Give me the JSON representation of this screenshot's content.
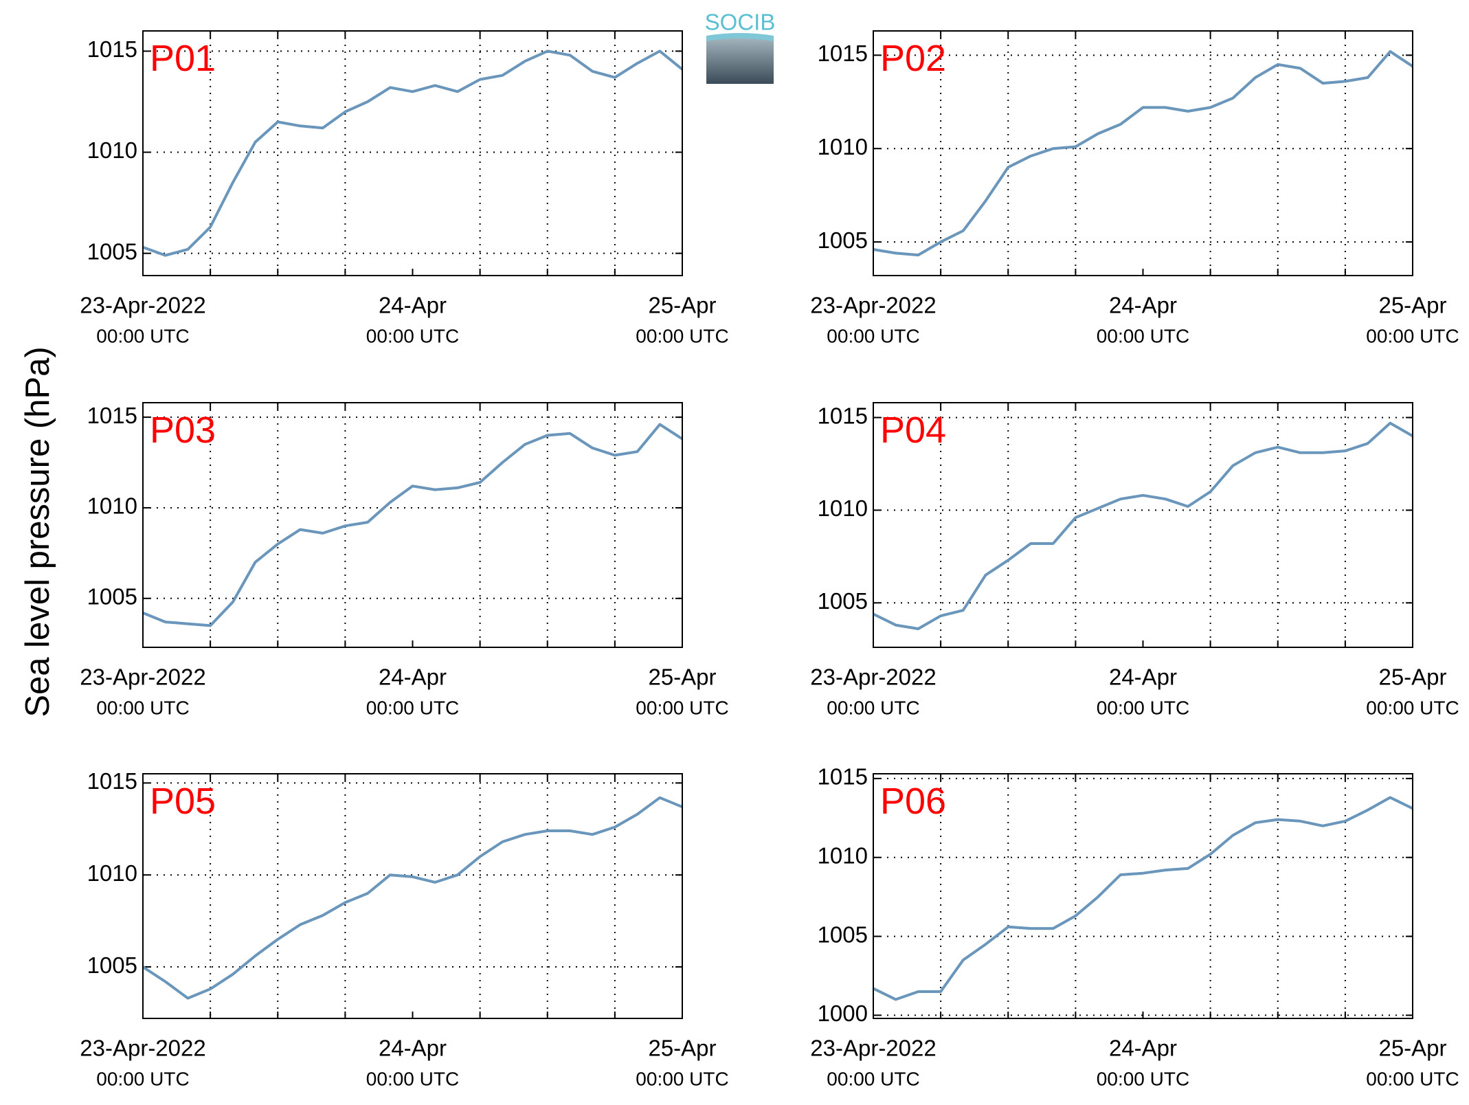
{
  "logo": "SOCIB",
  "ylabel": "Sea level pressure (hPa)",
  "chart_data": [
    {
      "type": "line",
      "title": "P01",
      "ylim": [
        1003.9,
        1016.0
      ],
      "yticks": [
        1005,
        1010,
        1015
      ],
      "xlim": [
        "2022-04-23T00:00",
        "2022-04-25T00:00"
      ],
      "xticks": [
        {
          "value": "2022-04-23T00:00",
          "label": "23-Apr-2022",
          "time_label": "00:00 UTC"
        },
        {
          "value": "2022-04-24T00:00",
          "label": "24-Apr",
          "time_label": "00:00 UTC"
        },
        {
          "value": "2022-04-25T00:00",
          "label": "25-Apr",
          "time_label": "00:00 UTC"
        }
      ],
      "xminorticks": [
        "2022-04-23T06:00",
        "2022-04-23T12:00",
        "2022-04-23T18:00",
        "2022-04-24T06:00",
        "2022-04-24T12:00",
        "2022-04-24T18:00"
      ],
      "grid": true,
      "x": [
        "2022-04-23T00:00",
        "2022-04-23T02:00",
        "2022-04-23T04:00",
        "2022-04-23T06:00",
        "2022-04-23T08:00",
        "2022-04-23T10:00",
        "2022-04-23T12:00",
        "2022-04-23T14:00",
        "2022-04-23T16:00",
        "2022-04-23T18:00",
        "2022-04-23T20:00",
        "2022-04-23T22:00",
        "2022-04-24T00:00",
        "2022-04-24T02:00",
        "2022-04-24T04:00",
        "2022-04-24T06:00",
        "2022-04-24T08:00",
        "2022-04-24T10:00",
        "2022-04-24T12:00",
        "2022-04-24T14:00",
        "2022-04-24T16:00",
        "2022-04-24T18:00",
        "2022-04-24T20:00",
        "2022-04-24T22:00",
        "2022-04-25T00:00"
      ],
      "color": "#6a96bb",
      "values": [
        1005.3,
        1004.9,
        1005.2,
        1006.3,
        1008.5,
        1010.5,
        1011.5,
        1011.3,
        1011.2,
        1012.0,
        1012.5,
        1013.2,
        1013.0,
        1013.3,
        1013.0,
        1013.6,
        1013.8,
        1014.5,
        1015.0,
        1014.8,
        1014.0,
        1013.7,
        1014.4,
        1015.0,
        1014.1
      ]
    },
    {
      "type": "line",
      "title": "P02",
      "ylim": [
        1003.2,
        1016.3
      ],
      "yticks": [
        1005,
        1010,
        1015
      ],
      "xlim": [
        "2022-04-23T00:00",
        "2022-04-25T00:00"
      ],
      "xticks": [
        {
          "value": "2022-04-23T00:00",
          "label": "23-Apr-2022",
          "time_label": "00:00 UTC"
        },
        {
          "value": "2022-04-24T00:00",
          "label": "24-Apr",
          "time_label": "00:00 UTC"
        },
        {
          "value": "2022-04-25T00:00",
          "label": "25-Apr",
          "time_label": "00:00 UTC"
        }
      ],
      "xminorticks": [
        "2022-04-23T06:00",
        "2022-04-23T12:00",
        "2022-04-23T18:00",
        "2022-04-24T06:00",
        "2022-04-24T12:00",
        "2022-04-24T18:00"
      ],
      "grid": true,
      "x": [
        "2022-04-23T00:00",
        "2022-04-23T02:00",
        "2022-04-23T04:00",
        "2022-04-23T06:00",
        "2022-04-23T08:00",
        "2022-04-23T10:00",
        "2022-04-23T12:00",
        "2022-04-23T14:00",
        "2022-04-23T16:00",
        "2022-04-23T18:00",
        "2022-04-23T20:00",
        "2022-04-23T22:00",
        "2022-04-24T00:00",
        "2022-04-24T02:00",
        "2022-04-24T04:00",
        "2022-04-24T06:00",
        "2022-04-24T08:00",
        "2022-04-24T10:00",
        "2022-04-24T12:00",
        "2022-04-24T14:00",
        "2022-04-24T16:00",
        "2022-04-24T18:00",
        "2022-04-24T20:00",
        "2022-04-24T22:00",
        "2022-04-25T00:00"
      ],
      "color": "#6a96bb",
      "values": [
        1004.6,
        1004.4,
        1004.3,
        1005.0,
        1005.6,
        1007.2,
        1009.0,
        1009.6,
        1010.0,
        1010.1,
        1010.8,
        1011.3,
        1012.2,
        1012.2,
        1012.0,
        1012.2,
        1012.7,
        1013.8,
        1014.5,
        1014.3,
        1013.5,
        1013.6,
        1013.8,
        1015.2,
        1014.4
      ]
    },
    {
      "type": "line",
      "title": "P03",
      "ylim": [
        1002.3,
        1015.8
      ],
      "yticks": [
        1005,
        1010,
        1015
      ],
      "xlim": [
        "2022-04-23T00:00",
        "2022-04-25T00:00"
      ],
      "xticks": [
        {
          "value": "2022-04-23T00:00",
          "label": "23-Apr-2022",
          "time_label": "00:00 UTC"
        },
        {
          "value": "2022-04-24T00:00",
          "label": "24-Apr",
          "time_label": "00:00 UTC"
        },
        {
          "value": "2022-04-25T00:00",
          "label": "25-Apr",
          "time_label": "00:00 UTC"
        }
      ],
      "xminorticks": [
        "2022-04-23T06:00",
        "2022-04-23T12:00",
        "2022-04-23T18:00",
        "2022-04-24T06:00",
        "2022-04-24T12:00",
        "2022-04-24T18:00"
      ],
      "grid": true,
      "x": [
        "2022-04-23T00:00",
        "2022-04-23T02:00",
        "2022-04-23T04:00",
        "2022-04-23T06:00",
        "2022-04-23T08:00",
        "2022-04-23T10:00",
        "2022-04-23T12:00",
        "2022-04-23T14:00",
        "2022-04-23T16:00",
        "2022-04-23T18:00",
        "2022-04-23T20:00",
        "2022-04-23T22:00",
        "2022-04-24T00:00",
        "2022-04-24T02:00",
        "2022-04-24T04:00",
        "2022-04-24T06:00",
        "2022-04-24T08:00",
        "2022-04-24T10:00",
        "2022-04-24T12:00",
        "2022-04-24T14:00",
        "2022-04-24T16:00",
        "2022-04-24T18:00",
        "2022-04-24T20:00",
        "2022-04-24T22:00",
        "2022-04-25T00:00"
      ],
      "color": "#6a96bb",
      "values": [
        1004.2,
        1003.7,
        1003.6,
        1003.5,
        1004.8,
        1007.0,
        1008.0,
        1008.8,
        1008.6,
        1009.0,
        1009.2,
        1010.3,
        1011.2,
        1011.0,
        1011.1,
        1011.4,
        1012.5,
        1013.5,
        1014.0,
        1014.1,
        1013.3,
        1012.9,
        1013.1,
        1014.6,
        1013.8
      ]
    },
    {
      "type": "line",
      "title": "P04",
      "ylim": [
        1002.6,
        1015.8
      ],
      "yticks": [
        1005,
        1010,
        1015
      ],
      "xlim": [
        "2022-04-23T00:00",
        "2022-04-25T00:00"
      ],
      "xticks": [
        {
          "value": "2022-04-23T00:00",
          "label": "23-Apr-2022",
          "time_label": "00:00 UTC"
        },
        {
          "value": "2022-04-24T00:00",
          "label": "24-Apr",
          "time_label": "00:00 UTC"
        },
        {
          "value": "2022-04-25T00:00",
          "label": "25-Apr",
          "time_label": "00:00 UTC"
        }
      ],
      "xminorticks": [
        "2022-04-23T06:00",
        "2022-04-23T12:00",
        "2022-04-23T18:00",
        "2022-04-24T06:00",
        "2022-04-24T12:00",
        "2022-04-24T18:00"
      ],
      "grid": true,
      "x": [
        "2022-04-23T00:00",
        "2022-04-23T02:00",
        "2022-04-23T04:00",
        "2022-04-23T06:00",
        "2022-04-23T08:00",
        "2022-04-23T10:00",
        "2022-04-23T12:00",
        "2022-04-23T14:00",
        "2022-04-23T16:00",
        "2022-04-23T18:00",
        "2022-04-23T20:00",
        "2022-04-23T22:00",
        "2022-04-24T00:00",
        "2022-04-24T02:00",
        "2022-04-24T04:00",
        "2022-04-24T06:00",
        "2022-04-24T08:00",
        "2022-04-24T10:00",
        "2022-04-24T12:00",
        "2022-04-24T14:00",
        "2022-04-24T16:00",
        "2022-04-24T18:00",
        "2022-04-24T20:00",
        "2022-04-24T22:00",
        "2022-04-25T00:00"
      ],
      "color": "#6a96bb",
      "values": [
        1004.4,
        1003.8,
        1003.6,
        1004.3,
        1004.6,
        1006.5,
        1007.3,
        1008.2,
        1008.2,
        1009.6,
        1010.1,
        1010.6,
        1010.8,
        1010.6,
        1010.2,
        1011.0,
        1012.4,
        1013.1,
        1013.4,
        1013.1,
        1013.1,
        1013.2,
        1013.6,
        1014.7,
        1014.0
      ]
    },
    {
      "type": "line",
      "title": "P05",
      "ylim": [
        1002.2,
        1015.5
      ],
      "yticks": [
        1005,
        1010,
        1015
      ],
      "xlim": [
        "2022-04-23T00:00",
        "2022-04-25T00:00"
      ],
      "xticks": [
        {
          "value": "2022-04-23T00:00",
          "label": "23-Apr-2022",
          "time_label": "00:00 UTC"
        },
        {
          "value": "2022-04-24T00:00",
          "label": "24-Apr",
          "time_label": "00:00 UTC"
        },
        {
          "value": "2022-04-25T00:00",
          "label": "25-Apr",
          "time_label": "00:00 UTC"
        }
      ],
      "xminorticks": [
        "2022-04-23T06:00",
        "2022-04-23T12:00",
        "2022-04-23T18:00",
        "2022-04-24T06:00",
        "2022-04-24T12:00",
        "2022-04-24T18:00"
      ],
      "grid": true,
      "x": [
        "2022-04-23T00:00",
        "2022-04-23T02:00",
        "2022-04-23T04:00",
        "2022-04-23T06:00",
        "2022-04-23T08:00",
        "2022-04-23T10:00",
        "2022-04-23T12:00",
        "2022-04-23T14:00",
        "2022-04-23T16:00",
        "2022-04-23T18:00",
        "2022-04-23T20:00",
        "2022-04-23T22:00",
        "2022-04-24T00:00",
        "2022-04-24T02:00",
        "2022-04-24T04:00",
        "2022-04-24T06:00",
        "2022-04-24T08:00",
        "2022-04-24T10:00",
        "2022-04-24T12:00",
        "2022-04-24T14:00",
        "2022-04-24T16:00",
        "2022-04-24T18:00",
        "2022-04-24T20:00",
        "2022-04-24T22:00",
        "2022-04-25T00:00"
      ],
      "color": "#6a96bb",
      "values": [
        1005.0,
        1004.2,
        1003.3,
        1003.8,
        1004.6,
        1005.6,
        1006.5,
        1007.3,
        1007.8,
        1008.5,
        1009.0,
        1010.0,
        1009.9,
        1009.6,
        1010.0,
        1011.0,
        1011.8,
        1012.2,
        1012.4,
        1012.4,
        1012.2,
        1012.6,
        1013.3,
        1014.2,
        1013.7
      ]
    },
    {
      "type": "line",
      "title": "P06",
      "ylim": [
        999.8,
        1015.3
      ],
      "yticks": [
        1000,
        1005,
        1010,
        1015
      ],
      "xlim": [
        "2022-04-23T00:00",
        "2022-04-25T00:00"
      ],
      "xticks": [
        {
          "value": "2022-04-23T00:00",
          "label": "23-Apr-2022",
          "time_label": "00:00 UTC"
        },
        {
          "value": "2022-04-24T00:00",
          "label": "24-Apr",
          "time_label": "00:00 UTC"
        },
        {
          "value": "2022-04-25T00:00",
          "label": "25-Apr",
          "time_label": "00:00 UTC"
        }
      ],
      "xminorticks": [
        "2022-04-23T06:00",
        "2022-04-23T12:00",
        "2022-04-23T18:00",
        "2022-04-24T06:00",
        "2022-04-24T12:00",
        "2022-04-24T18:00"
      ],
      "grid": true,
      "x": [
        "2022-04-23T00:00",
        "2022-04-23T02:00",
        "2022-04-23T04:00",
        "2022-04-23T06:00",
        "2022-04-23T08:00",
        "2022-04-23T10:00",
        "2022-04-23T12:00",
        "2022-04-23T14:00",
        "2022-04-23T16:00",
        "2022-04-23T18:00",
        "2022-04-23T20:00",
        "2022-04-23T22:00",
        "2022-04-24T00:00",
        "2022-04-24T02:00",
        "2022-04-24T04:00",
        "2022-04-24T06:00",
        "2022-04-24T08:00",
        "2022-04-24T10:00",
        "2022-04-24T12:00",
        "2022-04-24T14:00",
        "2022-04-24T16:00",
        "2022-04-24T18:00",
        "2022-04-24T20:00",
        "2022-04-24T22:00",
        "2022-04-25T00:00"
      ],
      "color": "#6a96bb",
      "values": [
        1001.7,
        1001.0,
        1001.5,
        1001.5,
        1003.5,
        1004.5,
        1005.6,
        1005.5,
        1005.5,
        1006.3,
        1007.5,
        1008.9,
        1009.0,
        1009.2,
        1009.3,
        1010.2,
        1011.4,
        1012.2,
        1012.4,
        1012.3,
        1012.0,
        1012.3,
        1013.0,
        1013.8,
        1013.1
      ]
    }
  ]
}
